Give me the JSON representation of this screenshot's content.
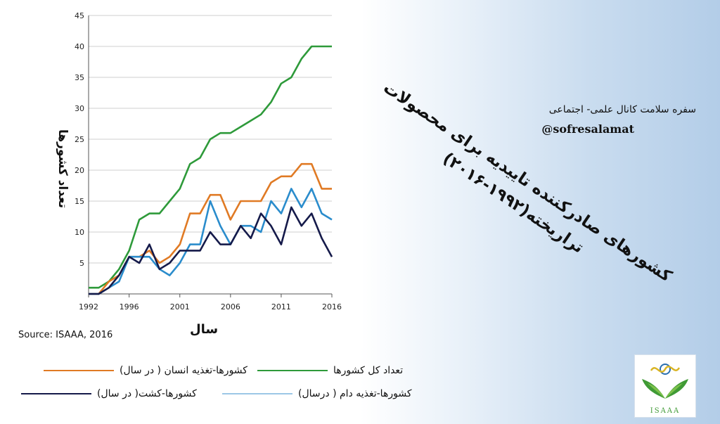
{
  "chart_data": {
    "type": "line",
    "x": [
      1992,
      1993,
      1994,
      1995,
      1996,
      1997,
      1998,
      1999,
      2000,
      2001,
      2002,
      2003,
      2004,
      2005,
      2006,
      2007,
      2008,
      2009,
      2010,
      2011,
      2012,
      2013,
      2014,
      2015,
      2016
    ],
    "xticks": [
      1992,
      1996,
      2001,
      2006,
      2011,
      2016
    ],
    "yticks": [
      5,
      10,
      15,
      20,
      25,
      30,
      35,
      40,
      45
    ],
    "ylim": [
      0,
      45
    ],
    "xlabel": "سال",
    "ylabel": "تعداد کشورها",
    "grid": "horizontal",
    "series": [
      {
        "name": "تعداد کل کشورها",
        "color": "#2e9a3a",
        "values": [
          1,
          1,
          2,
          4,
          7,
          12,
          13,
          13,
          15,
          17,
          21,
          22,
          25,
          26,
          26,
          27,
          28,
          29,
          31,
          34,
          35,
          38,
          40,
          40,
          40
        ]
      },
      {
        "name": "کشورها-تغذیه انسان ( در سال)",
        "color": "#e07a24",
        "values": [
          0,
          0,
          2,
          3,
          6,
          6,
          7,
          5,
          6,
          8,
          13,
          13,
          16,
          16,
          12,
          15,
          15,
          15,
          18,
          19,
          19,
          21,
          21,
          17,
          17
        ]
      },
      {
        "name": "کشورها-تغذیه دام ( درسال)",
        "color": "#2a8ccc",
        "values": [
          0,
          0,
          1,
          2,
          6,
          6,
          6,
          4,
          3,
          5,
          8,
          8,
          15,
          11,
          8,
          11,
          11,
          10,
          15,
          13,
          17,
          14,
          17,
          13,
          12
        ]
      },
      {
        "name": "کشورها-کشت( در سال)",
        "color": "#151a4a",
        "values": [
          0,
          0,
          1,
          3,
          6,
          5,
          8,
          4,
          5,
          7,
          7,
          7,
          10,
          8,
          8,
          11,
          9,
          13,
          11,
          8,
          14,
          11,
          13,
          9,
          6
        ]
      }
    ],
    "source": "Source: ISAAA, 2016"
  },
  "legend": {
    "item1": "تعداد کل کشورها",
    "item2": "کشورها-تغذیه انسان ( در سال)",
    "item3": "کشورها-تغذیه دام ( درسال)",
    "item4": "کشورها-کشت( در سال)"
  },
  "colors": {
    "green": "#2e9a3a",
    "orange": "#e07a24",
    "lightblue": "#2a8ccc",
    "navy": "#151a4a"
  },
  "channel": {
    "name": "سفره سلامت کانال علمی- اجتماعی",
    "handle": "@sofresalamat"
  },
  "title": {
    "line1": "کشورهای صادرکننده تاییدیه برای محصولات",
    "line2": "تراریخته(۱۹۹۲-۲۰۱۶)"
  },
  "logo": {
    "text": "ISAAA"
  }
}
